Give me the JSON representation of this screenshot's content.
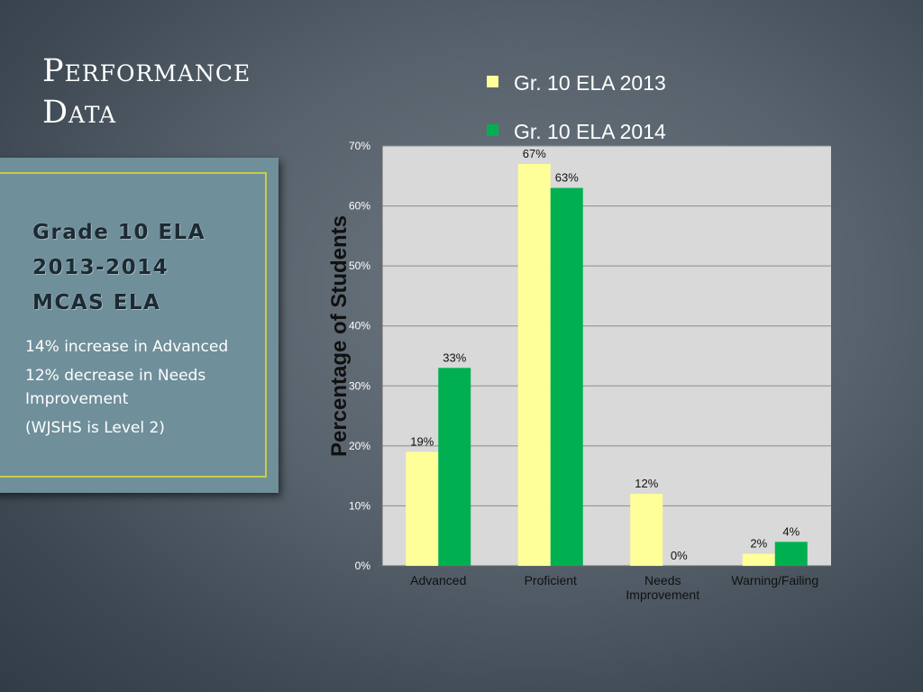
{
  "title_lines": [
    "Performance",
    "Data"
  ],
  "card": {
    "heading_lines": [
      "Grade 10 ELA",
      "2013-2014",
      "MCAS ELA"
    ],
    "notes": [
      "14% increase in Advanced",
      "12% decrease in Needs Improvement",
      "(WJSHS is Level 2)"
    ]
  },
  "chart_data": {
    "type": "bar",
    "categories": [
      [
        "Advanced"
      ],
      [
        "Proficient"
      ],
      [
        "Needs",
        "Improvement"
      ],
      [
        "Warning/Failing"
      ]
    ],
    "series": [
      {
        "name": "Gr. 10 ELA 2013",
        "color": "#ffff99",
        "values": [
          19,
          67,
          12,
          2
        ],
        "labels": [
          "19%",
          "67%",
          "12%",
          "2%"
        ]
      },
      {
        "name": "Gr. 10 ELA 2014",
        "color": "#00b050",
        "values": [
          33,
          63,
          0,
          4
        ],
        "labels": [
          "33%",
          "63%",
          "0%",
          "4%"
        ]
      }
    ],
    "ylabel": "Percentage of Students",
    "ylim": [
      0,
      70
    ],
    "yticks": [
      0,
      10,
      20,
      30,
      40,
      50,
      60,
      70
    ],
    "ytick_labels": [
      "0%",
      "10%",
      "20%",
      "30%",
      "40%",
      "50%",
      "60%",
      "70%"
    ],
    "grid": true,
    "legend_position": "top"
  }
}
